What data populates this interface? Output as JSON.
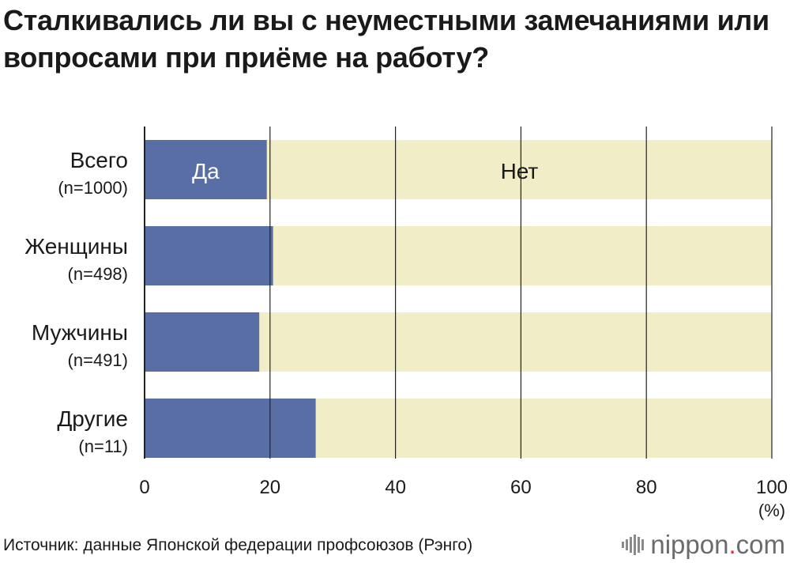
{
  "title": "Сталкивались ли вы с неуместными замечаниями или вопросами при приёме на работу?",
  "source": "Источник: данные Японской федерации профсоюзов (Рэнго)",
  "brand": {
    "name": "nippon",
    "dot": ".",
    "suffix": "com"
  },
  "colors": {
    "yes": "#5a6ea6",
    "no": "#f1edc7",
    "axis": "#222222",
    "grid": "#222222"
  },
  "chart_data": {
    "type": "bar",
    "orientation": "horizontal",
    "stacked": true,
    "categories": [
      {
        "label": "Всего",
        "sublabel": "(n=1000)"
      },
      {
        "label": "Женщины",
        "sublabel": "(n=498)"
      },
      {
        "label": "Мужчины",
        "sublabel": "(n=491)"
      },
      {
        "label": "Другие",
        "sublabel": "(n=11)"
      }
    ],
    "series": [
      {
        "name": "Да",
        "values": [
          19.5,
          20.5,
          18.3,
          27.3
        ]
      },
      {
        "name": "Нет",
        "values": [
          80.5,
          79.5,
          81.7,
          72.7
        ]
      }
    ],
    "xlim": [
      0,
      100
    ],
    "xticks": [
      "0",
      "20",
      "40",
      "60",
      "80",
      "100"
    ],
    "xunit": "(%)",
    "grid": true,
    "legend": "inside first bar"
  }
}
